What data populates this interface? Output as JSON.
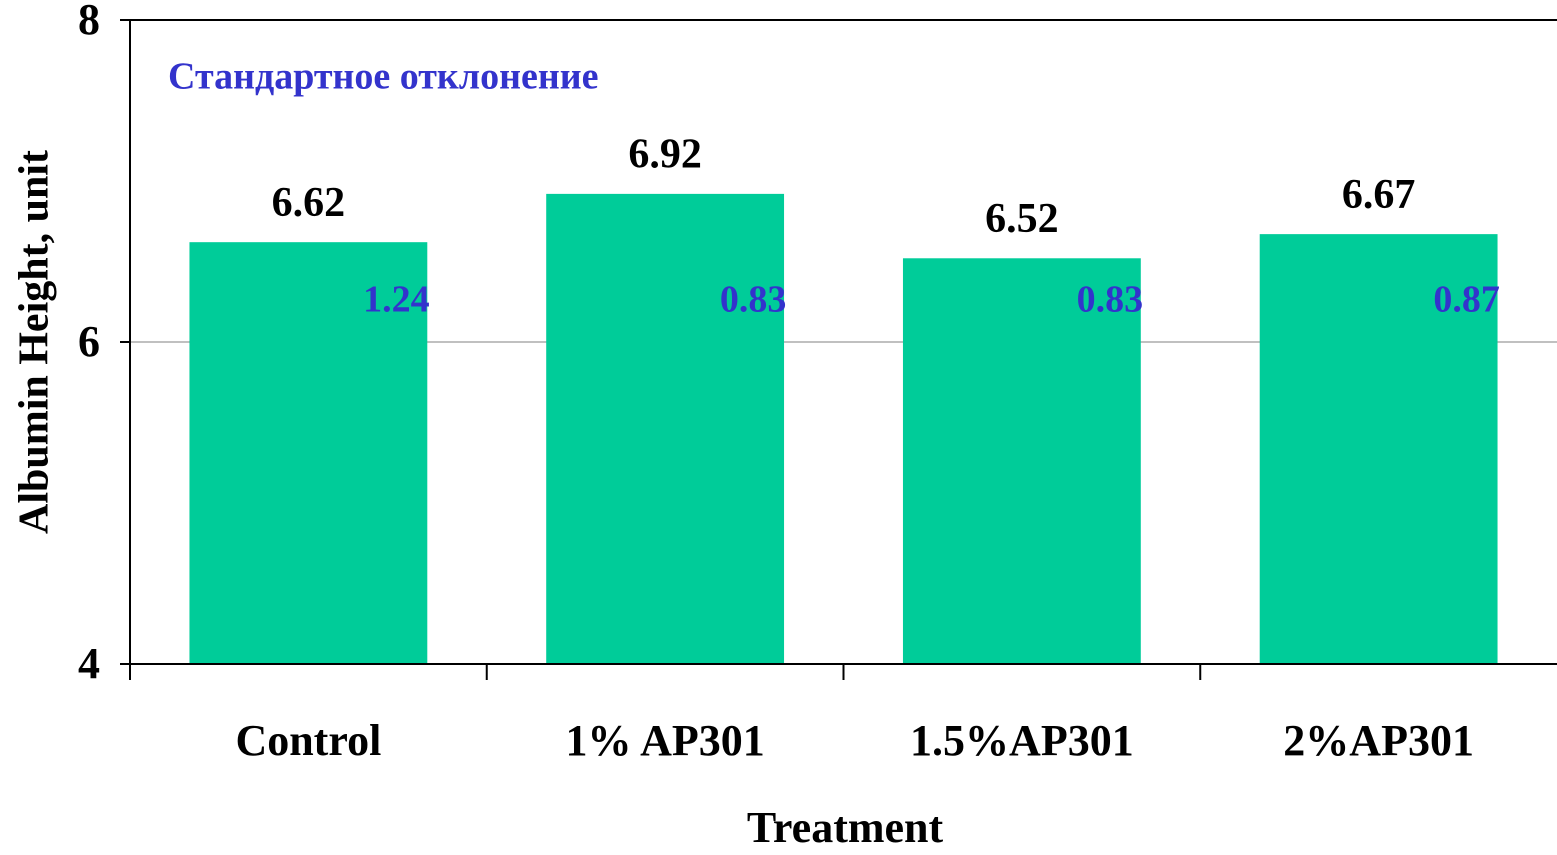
{
  "chart_data": {
    "type": "bar",
    "annotation": "Стандартное отклонение",
    "xlabel": "Treatment",
    "ylabel": "Albumin Height, unit",
    "categories": [
      "Control",
      "1% AP301",
      "1.5%AP301",
      "2%AP301"
    ],
    "values": [
      6.62,
      6.92,
      6.52,
      6.67
    ],
    "std_dev": [
      1.24,
      0.83,
      0.83,
      0.87
    ],
    "color": "#00cc99",
    "ylim": [
      4,
      8
    ],
    "yticks": [
      4,
      6,
      8
    ],
    "grid": true
  }
}
